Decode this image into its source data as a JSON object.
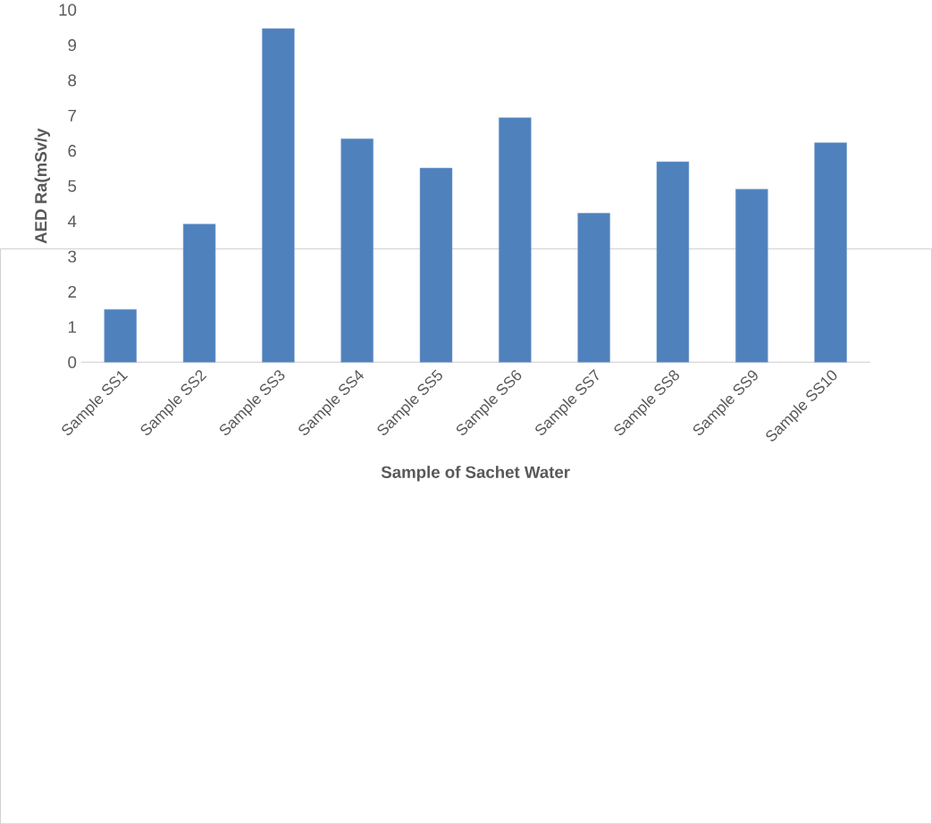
{
  "chart_data": {
    "type": "bar",
    "xlabel": "Sample of Sachet Water",
    "ylabel": "AED Ra(mSv/y",
    "categories": [
      "Sample SS1",
      "Sample SS2",
      "Sample SS3",
      "Sample SS4",
      "Sample SS5",
      "Sample SS6",
      "Sample SS7",
      "Sample SS8",
      "Sample SS9",
      "Sample SS10"
    ],
    "values": [
      1.5,
      3.92,
      9.47,
      6.34,
      5.51,
      6.94,
      4.23,
      5.69,
      4.91,
      6.23
    ],
    "color": "#4f81bd",
    "ylim": [
      0,
      10
    ],
    "yticks": [
      0,
      1,
      2,
      3,
      4,
      5,
      6,
      7,
      8,
      9,
      10
    ]
  }
}
